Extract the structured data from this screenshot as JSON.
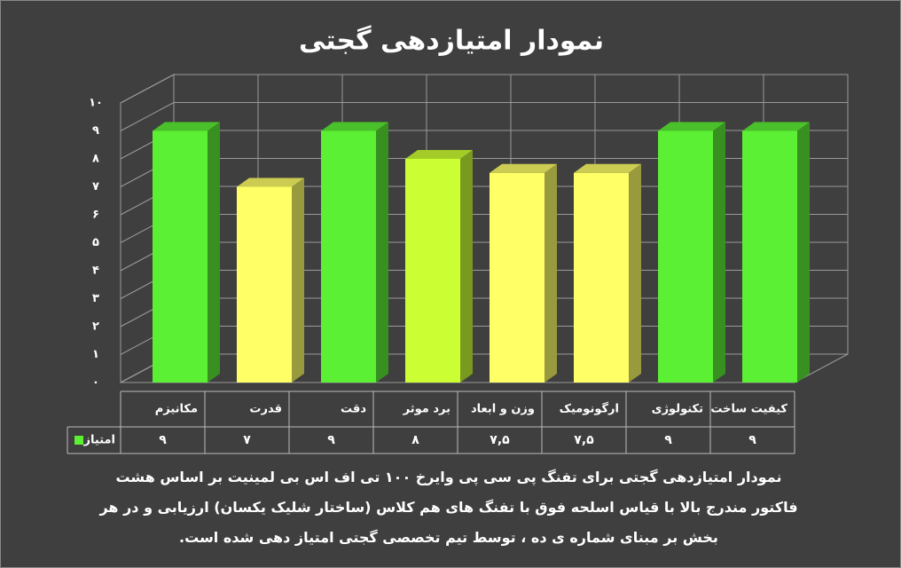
{
  "chart_data": {
    "type": "bar3d",
    "title": "نمودار امتیازدهی گجتی",
    "categories": [
      "مکانیزم",
      "قدرت",
      "دقت",
      "برد موثر",
      "وزن و ابعاد",
      "ارگونومیک",
      "تکنولوژی",
      "کیفیت ساخت"
    ],
    "series": [
      {
        "name": "امتیاز",
        "color": "#5cf035",
        "colors": [
          "#5cf035",
          "#ffff66",
          "#5cf035",
          "#ccff33",
          "#ffff66",
          "#ffff66",
          "#5cf035",
          "#5cf035"
        ],
        "values": [
          9,
          7,
          9,
          8,
          7.5,
          7.5,
          9,
          9
        ],
        "value_labels": [
          "۹",
          "۷",
          "۹",
          "۸",
          "۷,۵",
          "۷,۵",
          "۹",
          "۹"
        ]
      }
    ],
    "ylim": [
      0,
      10
    ],
    "yticks": [
      {
        "value": 0,
        "label": "۰"
      },
      {
        "value": 1,
        "label": "۱"
      },
      {
        "value": 2,
        "label": "۲"
      },
      {
        "value": 3,
        "label": "۳"
      },
      {
        "value": 4,
        "label": "۴"
      },
      {
        "value": 5,
        "label": "۵"
      },
      {
        "value": 6,
        "label": "۶"
      },
      {
        "value": 7,
        "label": "۷"
      },
      {
        "value": 8,
        "label": "۸"
      },
      {
        "value": 9,
        "label": "۹"
      },
      {
        "value": 10,
        "label": "۱۰"
      }
    ],
    "grid": true,
    "caption": "نمودار امتیازدهی گجتی برای تفنگ پی سی پی وایرخ ۱۰۰ تی اف اس بی لمینیت بر اساس هشت فاکتور مندرج بالا با قیاس اسلحه فوق با تفنگ های هم کلاس (ساختار شلیک یکسان) ارزیابی و در هر بخش بر مبنای شماره ی ده ، توسط تیم تخصصی گجتی امتیاز دهی شده است."
  }
}
